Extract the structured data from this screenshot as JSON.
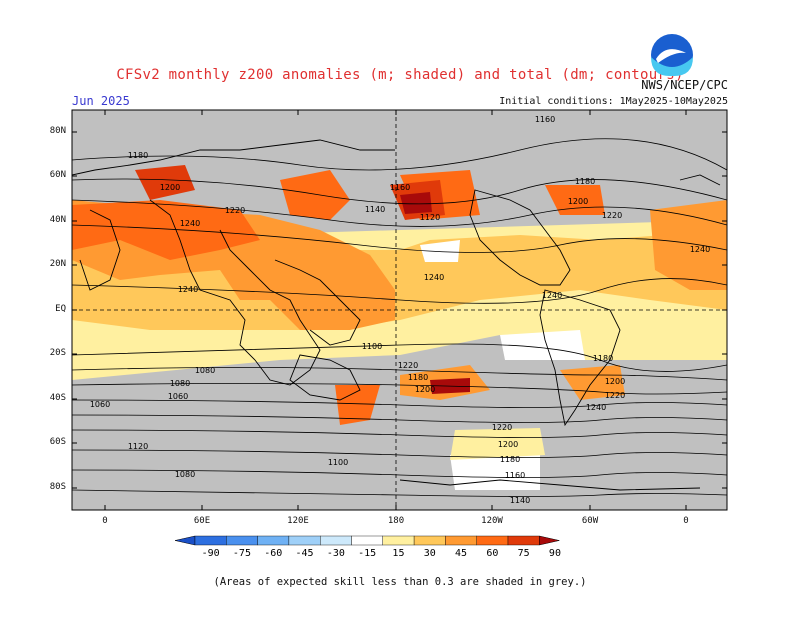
{
  "title": "CFSv2 monthly z200 anomalies (m; shaded) and total (dm; contours)",
  "month_label": "Jun 2025",
  "agency": "NWS/NCEP/CPC",
  "initial_conditions": "Initial conditions: 1May2025-10May2025",
  "logo_text": "NOAA",
  "footnote": "(Areas of expected skill less than 0.3 are shaded in grey.)",
  "lat_labels": [
    "80N",
    "60N",
    "40N",
    "20N",
    "EQ",
    "20S",
    "40S",
    "60S",
    "80S"
  ],
  "lon_labels": [
    "0",
    "60E",
    "120E",
    "180",
    "120W",
    "60W",
    "0"
  ],
  "colorbar": {
    "ticks": [
      "-90",
      "-75",
      "-60",
      "-45",
      "-30",
      "-15",
      "15",
      "30",
      "45",
      "60",
      "75",
      "90"
    ],
    "colors": [
      "#1a4fc7",
      "#2d6fe0",
      "#4a90ee",
      "#6fb1f4",
      "#9fd0f8",
      "#cde9fb",
      "#ffffff",
      "#fff0a0",
      "#ffc85a",
      "#ff9a32",
      "#ff6a14",
      "#e03a0a",
      "#a80a0a"
    ]
  },
  "colors": {
    "grey_mask": "#c0c0c0",
    "land_line": "#000000",
    "contour": "#000000"
  },
  "contour_labels": [
    "1160",
    "1180",
    "1200",
    "1220",
    "1240",
    "1240",
    "1240",
    "1240",
    "1240",
    "1220",
    "1200",
    "1180",
    "1160",
    "1140",
    "1120",
    "1100",
    "1080",
    "1080",
    "1060",
    "1060",
    "1180",
    "1200",
    "1220",
    "1180",
    "1200",
    "1220",
    "1240",
    "1220",
    "1200",
    "1180",
    "1160",
    "1140",
    "1120",
    "1100",
    "1080"
  ]
}
